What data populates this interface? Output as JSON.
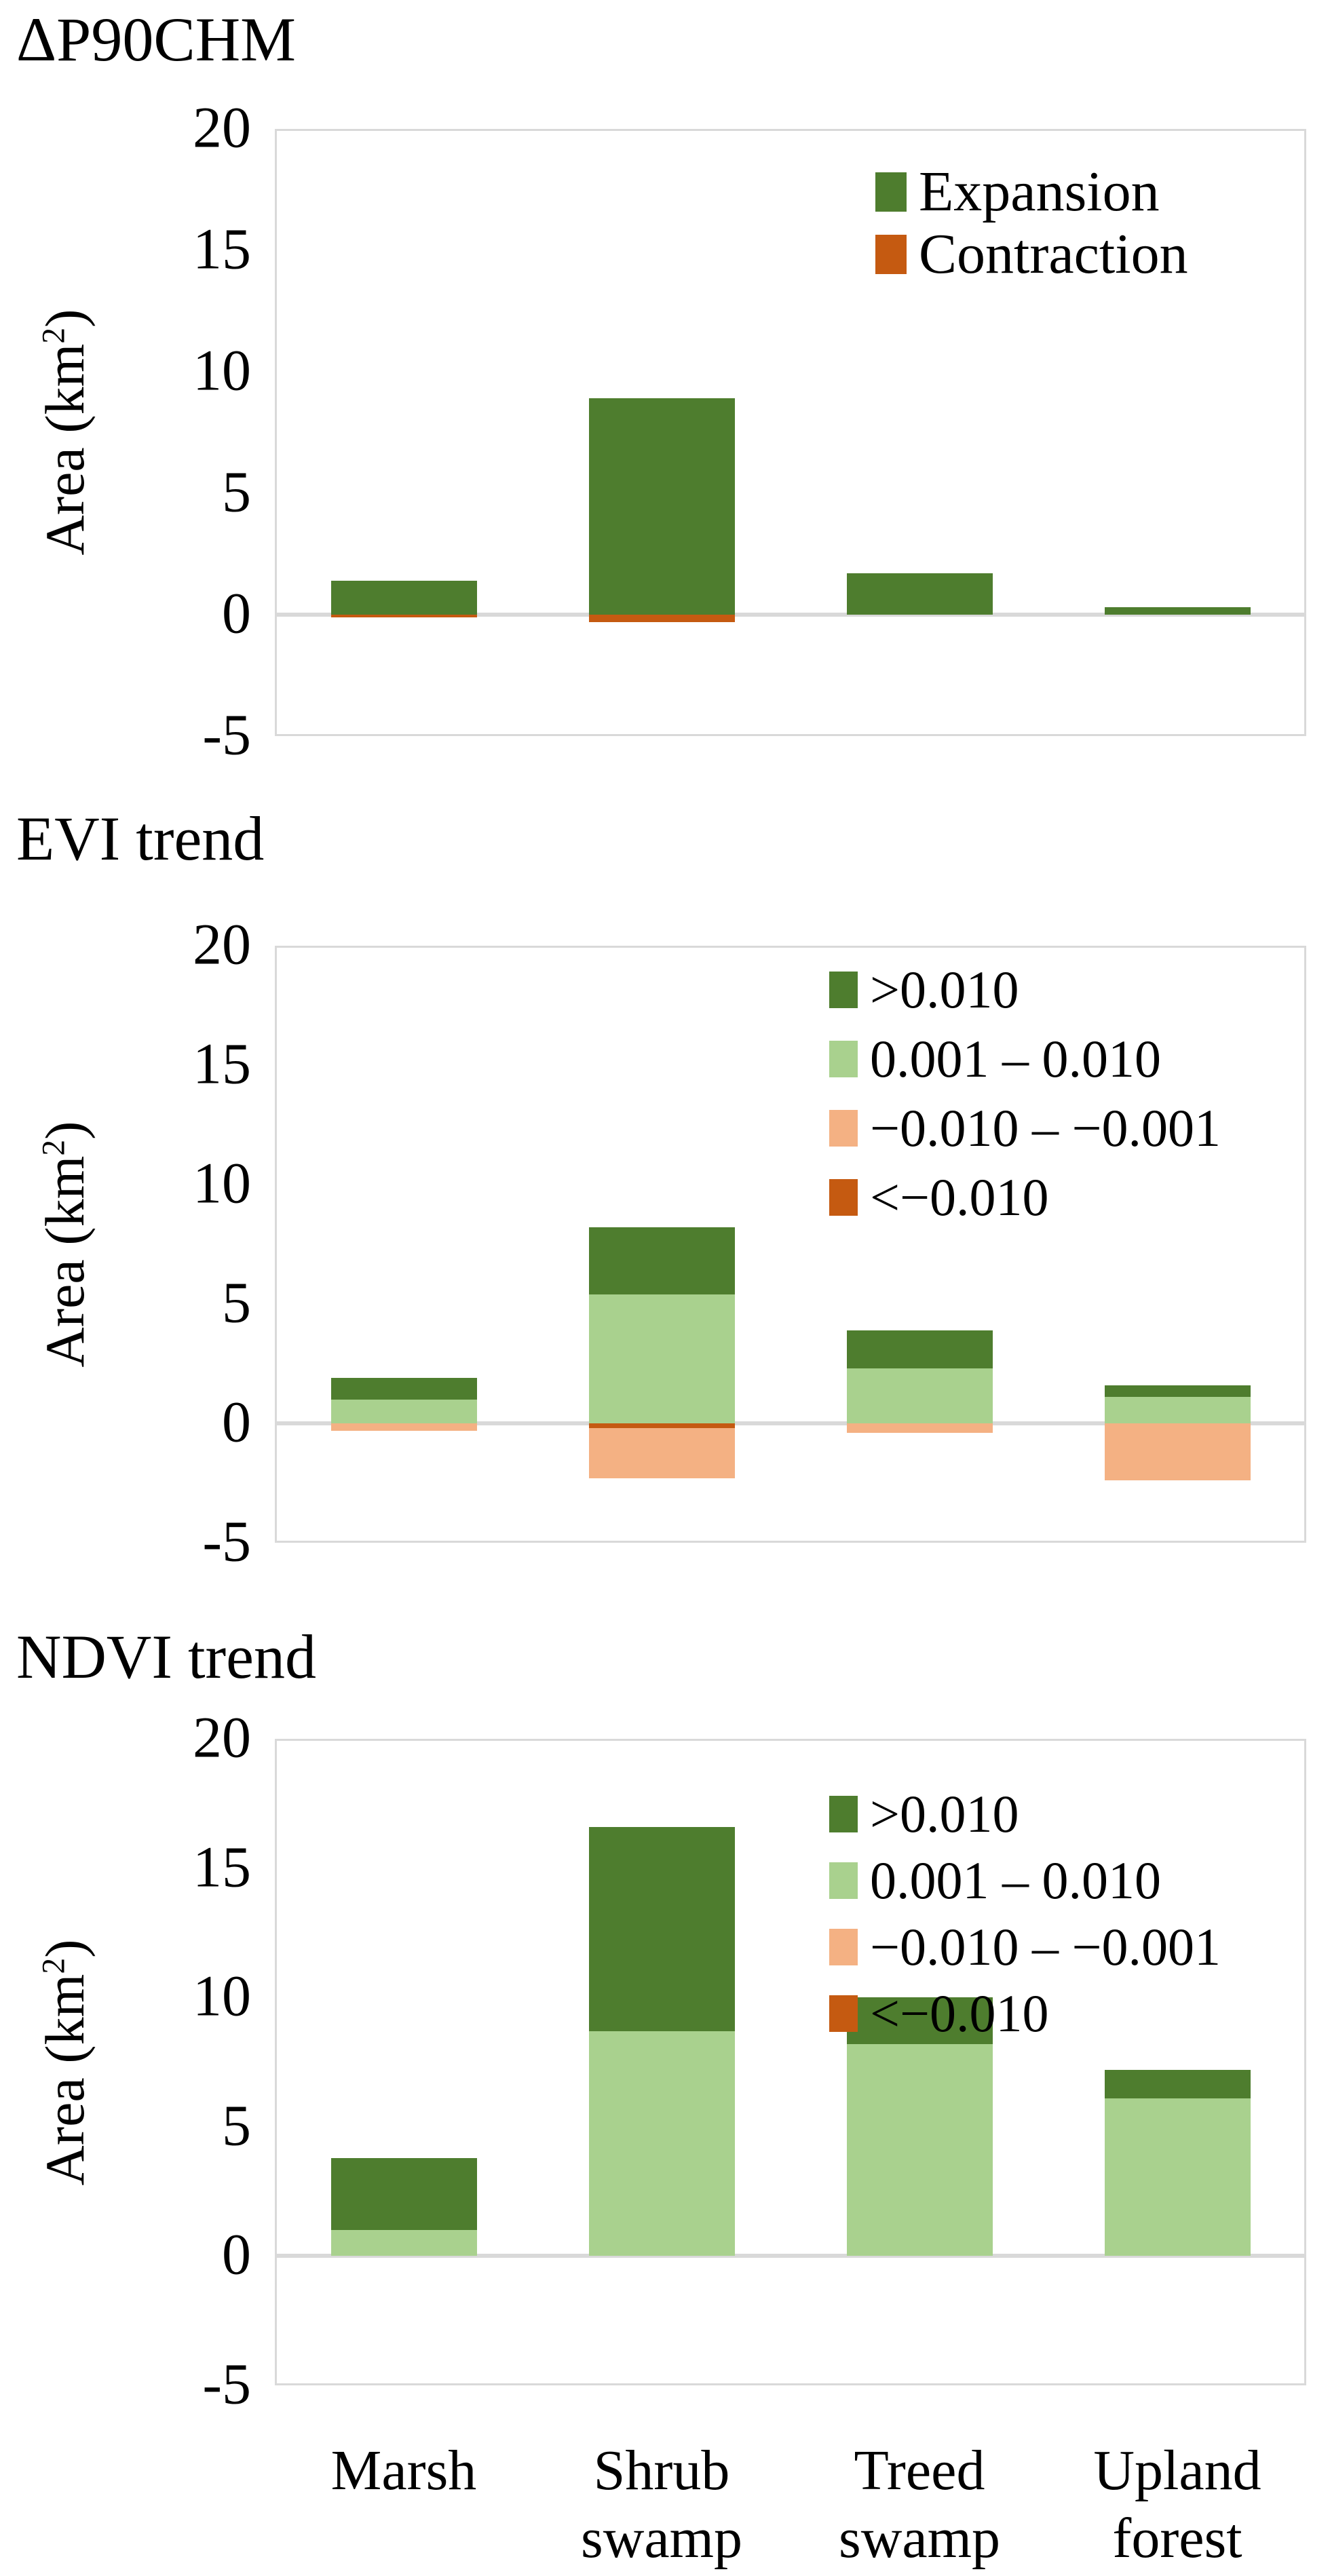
{
  "figure": {
    "background": "#ffffff"
  },
  "axis": {
    "ylabel_prefix": "Area (km",
    "ylabel_sup": "2",
    "ylabel_suffix": ")",
    "ticks": [
      20,
      15,
      10,
      5,
      0,
      -5
    ],
    "ylim": [
      -5,
      20
    ]
  },
  "categories": [
    [
      "Marsh"
    ],
    [
      "Shrub",
      "swamp"
    ],
    [
      "Treed",
      "swamp"
    ],
    [
      "Upland",
      "forest"
    ]
  ],
  "colors": {
    "dark_green": "#4e7d2e",
    "light_green": "#a9d18e",
    "light_orange": "#f4b183",
    "dark_orange": "#c55a11",
    "grid": "#d9d9d9",
    "text": "#000000"
  },
  "chart_data": [
    {
      "type": "bar",
      "stacked": true,
      "title": "ΔP90CHM",
      "xlabel": "",
      "ylabel": "Area (km2)",
      "ylim": [
        -5,
        20
      ],
      "grid": false,
      "legend_position": "top-right",
      "categories": [
        "Marsh",
        "Shrub swamp",
        "Treed swamp",
        "Upland forest"
      ],
      "legend": [
        {
          "label": "Expansion",
          "color": "#4e7d2e"
        },
        {
          "label": "Contraction",
          "color": "#c55a11"
        }
      ],
      "series": [
        {
          "name": "Expansion",
          "color": "#4e7d2e",
          "values": [
            1.4,
            8.9,
            1.7,
            0.3
          ]
        },
        {
          "name": "Contraction",
          "color": "#c55a11",
          "values": [
            -0.1,
            -0.3,
            0,
            0
          ]
        }
      ]
    },
    {
      "type": "bar",
      "stacked": true,
      "title": "EVI trend",
      "xlabel": "",
      "ylabel": "Area (km2)",
      "ylim": [
        -5,
        20
      ],
      "grid": false,
      "legend_position": "top-right",
      "categories": [
        "Marsh",
        "Shrub swamp",
        "Treed swamp",
        "Upland forest"
      ],
      "legend": [
        {
          "label": ">0.010",
          "color": "#4e7d2e"
        },
        {
          "label": "0.001 – 0.010",
          "color": "#a9d18e"
        },
        {
          "label": "−0.010 – −0.001",
          "color": "#f4b183"
        },
        {
          "label": "<−0.010",
          "color": "#c55a11"
        }
      ],
      "series": [
        {
          "name": "0.001 – 0.010",
          "color": "#a9d18e",
          "values": [
            1.0,
            5.4,
            2.3,
            1.1
          ]
        },
        {
          "name": ">0.010",
          "color": "#4e7d2e",
          "values": [
            0.9,
            2.8,
            1.6,
            0.5
          ]
        },
        {
          "name": "<−0.010",
          "color": "#c55a11",
          "values": [
            0,
            -0.2,
            0,
            0
          ]
        },
        {
          "name": "−0.010 – −0.001",
          "color": "#f4b183",
          "values": [
            -0.3,
            -2.1,
            -0.4,
            -2.4
          ]
        }
      ]
    },
    {
      "type": "bar",
      "stacked": true,
      "title": "NDVI trend",
      "xlabel": "",
      "ylabel": "Area (km2)",
      "ylim": [
        -5,
        20
      ],
      "grid": false,
      "legend_position": "top-right",
      "categories": [
        "Marsh",
        "Shrub swamp",
        "Treed swamp",
        "Upland forest"
      ],
      "legend": [
        {
          "label": ">0.010",
          "color": "#4e7d2e"
        },
        {
          "label": "0.001 – 0.010",
          "color": "#a9d18e"
        },
        {
          "label": "−0.010 – −0.001",
          "color": "#f4b183"
        },
        {
          "label": "<−0.010",
          "color": "#c55a11"
        }
      ],
      "series": [
        {
          "name": "0.001 – 0.010",
          "color": "#a9d18e",
          "values": [
            1.0,
            8.7,
            8.2,
            6.1
          ]
        },
        {
          "name": ">0.010",
          "color": "#4e7d2e",
          "values": [
            2.8,
            7.9,
            1.8,
            1.1
          ]
        },
        {
          "name": "<−0.010",
          "color": "#c55a11",
          "values": [
            0,
            0,
            0,
            0
          ]
        },
        {
          "name": "−0.010 – −0.001",
          "color": "#f4b183",
          "values": [
            0,
            0,
            0,
            0
          ]
        }
      ]
    }
  ]
}
